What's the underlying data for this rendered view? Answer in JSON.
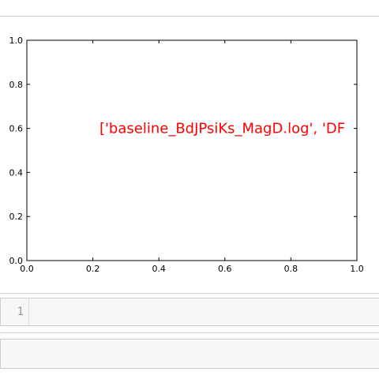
{
  "code_cell": {
    "line_number": "1",
    "content": ""
  },
  "colors": {
    "annotation": "#ff0000",
    "axes": "#000000",
    "cell_background": "#f7f7f7",
    "line_number": "#999999"
  },
  "chart_data": {
    "type": "scatter",
    "title": "",
    "xlabel": "",
    "ylabel": "",
    "xlim": [
      0.0,
      1.0
    ],
    "ylim": [
      0.0,
      1.0
    ],
    "xticks": [
      "0.0",
      "0.2",
      "0.4",
      "0.6",
      "0.8",
      "1.0"
    ],
    "yticks": [
      "0.0",
      "0.2",
      "0.4",
      "0.6",
      "0.8",
      "1.0"
    ],
    "grid": false,
    "series": [],
    "annotation": {
      "text": "['baseline_BdJPsiKs_MagD.log', 'DF",
      "x": 0.22,
      "y": 0.6,
      "color": "#ff0000"
    }
  }
}
